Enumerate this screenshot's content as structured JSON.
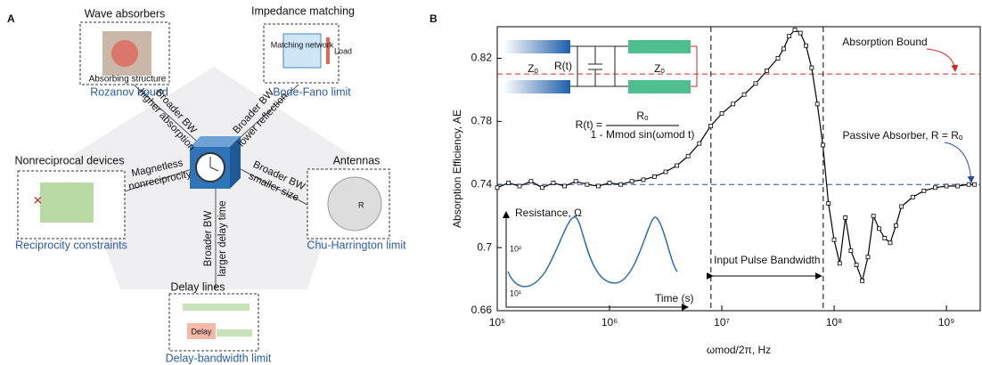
{
  "panel_labels": [
    "A",
    "B"
  ],
  "panel_a": {
    "nodes": [
      {
        "title": "Wave absorbers",
        "inner": "Absorbing structure",
        "limit": "Rozanov bound"
      },
      {
        "title": "Impedance matching",
        "inner": "Matching network",
        "inner2": "Load",
        "limit": "Bode-Fano limit"
      },
      {
        "title": "Nonreciprocal devices",
        "limit": "Reciprocity constraints"
      },
      {
        "title": "Antennas",
        "inner": "R",
        "limit": "Chu-Harrington limit"
      },
      {
        "title": "Delay lines",
        "inner": "Delay",
        "limit": "Delay-bandwidth limit"
      }
    ],
    "spokes": [
      [
        "Broader BW",
        "higher absorption"
      ],
      [
        "Broader BW",
        "lower reflection"
      ],
      [
        "Magnetless",
        "nonreciprocity"
      ],
      [
        "Broader BW",
        "smaller size"
      ],
      [
        "Broader BW",
        "larger delay time"
      ]
    ]
  },
  "chart_data": {
    "type": "line",
    "x_label": "ωmod/2π, Hz",
    "y_label": "Absorption Efficiency, AE",
    "log_x": true,
    "xlim": [
      100000,
      2000000000
    ],
    "xticks": [
      {
        "value": 100000,
        "label": "10⁵"
      },
      {
        "value": 1000000,
        "label": "10⁶"
      },
      {
        "value": 10000000,
        "label": "10⁷"
      },
      {
        "value": 100000000,
        "label": "10⁸"
      },
      {
        "value": 1000000000,
        "label": "10⁹"
      }
    ],
    "ylim": [
      0.66,
      0.84
    ],
    "yticks": [
      0.66,
      0.7,
      0.74,
      0.78,
      0.82
    ],
    "x": [
      100000,
      126000,
      158000,
      200000,
      251000,
      316000,
      398000,
      501000,
      631000,
      794000,
      1000000,
      1260000,
      1580000,
      2000000,
      2510000,
      3160000,
      3980000,
      5010000,
      6310000,
      7940000,
      10000000,
      12600000,
      15800000,
      20000000,
      25100000,
      31600000,
      35500000,
      39800000,
      44700000,
      50100000,
      56200000,
      63100000,
      70800000,
      79400000,
      89100000,
      100000000,
      112000000,
      126000000,
      141000000,
      158000000,
      178000000,
      200000000,
      224000000,
      251000000,
      282000000,
      316000000,
      355000000,
      398000000,
      501000000,
      631000000,
      794000000,
      1000000000,
      1260000000,
      1580000000,
      1780000000
    ],
    "series": [
      {
        "color": "#000000",
        "values": [
          0.738,
          0.741,
          0.739,
          0.742,
          0.738,
          0.741,
          0.739,
          0.742,
          0.74,
          0.739,
          0.741,
          0.74,
          0.742,
          0.743,
          0.745,
          0.748,
          0.752,
          0.758,
          0.766,
          0.777,
          0.785,
          0.791,
          0.797,
          0.804,
          0.812,
          0.82,
          0.826,
          0.834,
          0.838,
          0.836,
          0.828,
          0.814,
          0.791,
          0.765,
          0.728,
          0.705,
          0.69,
          0.719,
          0.698,
          0.689,
          0.679,
          0.694,
          0.72,
          0.712,
          0.706,
          0.703,
          0.714,
          0.726,
          0.732,
          0.736,
          0.738,
          0.739,
          0.739,
          0.74,
          0.74
        ]
      }
    ],
    "reference_lines": [
      {
        "value": 0.81,
        "color": "#d62728",
        "label": "Absorption Bound"
      },
      {
        "value": 0.74,
        "color": "#2a4d9b",
        "label": "Passive Absorber, R = Rₒ"
      }
    ],
    "vertical_lines": [
      8000000,
      80000000
    ],
    "bandwidth_label": "Input Pulse Bandwidth",
    "circuit": {
      "left": "Zₒ",
      "middle": "R(t)",
      "right": "Zₒ"
    },
    "formula": {
      "lhs": "R(t) =",
      "numerator": "Rₒ",
      "denominator": "1 - Mmod sin(ωmod t)"
    },
    "inset": {
      "y_label": "Resistance, Ω",
      "x_label": "Time (s)",
      "ticks": [
        "10²",
        "10¹"
      ]
    }
  }
}
